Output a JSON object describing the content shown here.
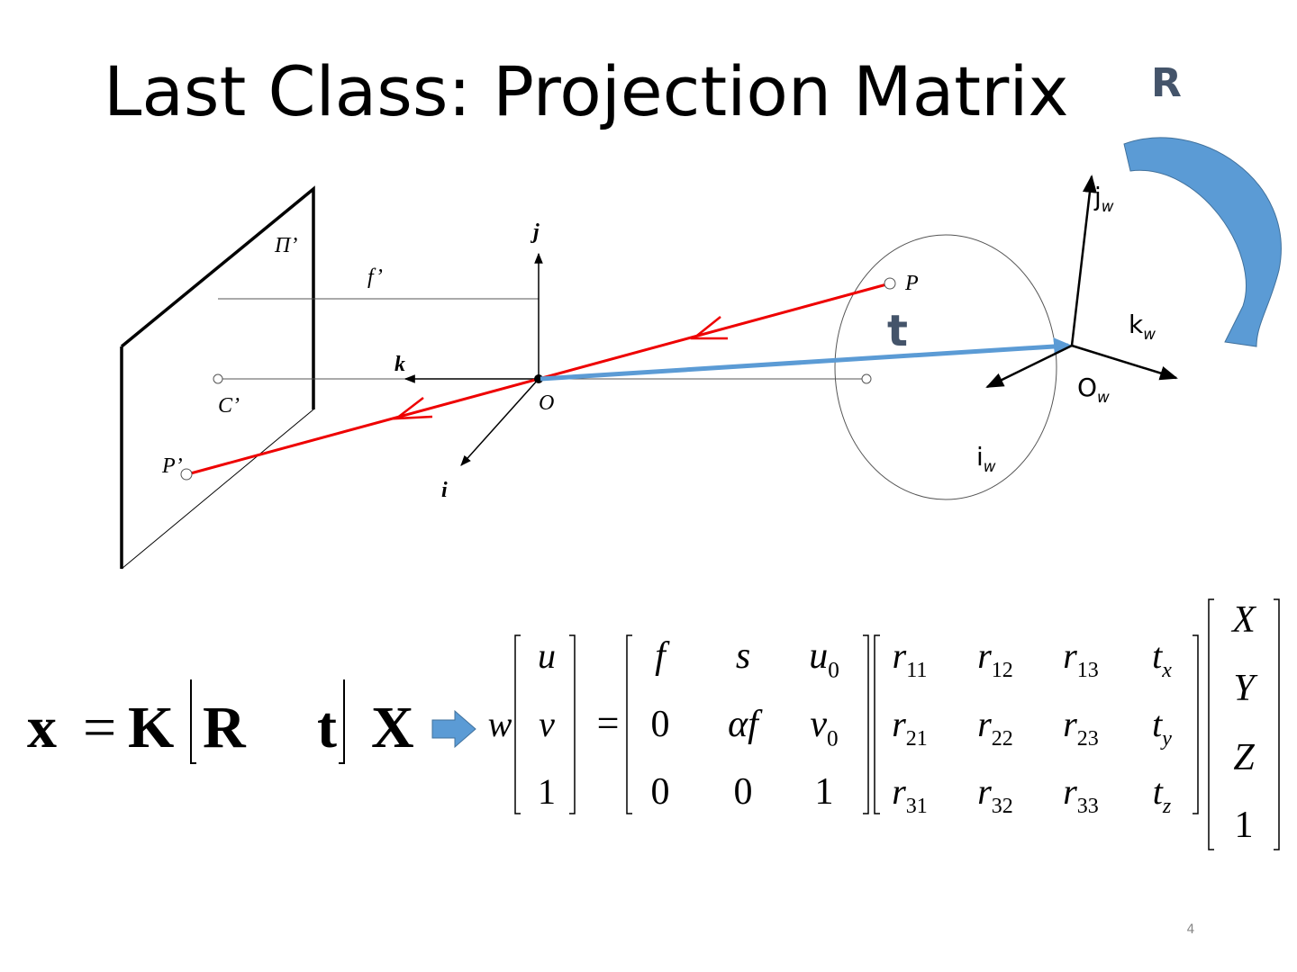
{
  "title": "Last Class: Projection Matrix",
  "slide_number": "4",
  "diagram": {
    "rotation_label": "R",
    "translation_label": "t",
    "camera_labels": {
      "image_plane": "Π’",
      "focal_length": "f’",
      "j_axis": "j",
      "k_axis": "k",
      "i_axis": "i",
      "center": "C’",
      "origin": "O",
      "point": "P",
      "projection": "P’"
    },
    "world_axes": {
      "j": {
        "base": "j",
        "sub": "w"
      },
      "k": {
        "base": "k",
        "sub": "w"
      },
      "origin": {
        "base": "O",
        "sub": "w"
      },
      "i": {
        "base": "i",
        "sub": "w"
      }
    }
  },
  "equation": {
    "x": "x",
    "equals": "=",
    "K": "K",
    "R": "R",
    "t": "t",
    "X": "X"
  },
  "matrix_equation": {
    "scale": "w",
    "equals": "=",
    "image_point": [
      "u",
      "v",
      "1"
    ],
    "intrinsics": [
      [
        "f",
        "s",
        {
          "base": "u",
          "sub": "0"
        }
      ],
      [
        "0",
        "αf",
        {
          "base": "v",
          "sub": "0"
        }
      ],
      [
        "0",
        "0",
        "1"
      ]
    ],
    "extrinsics": [
      [
        {
          "base": "r",
          "sub": "11"
        },
        {
          "base": "r",
          "sub": "12"
        },
        {
          "base": "r",
          "sub": "13"
        },
        {
          "base": "t",
          "sub": "x"
        }
      ],
      [
        {
          "base": "r",
          "sub": "21"
        },
        {
          "base": "r",
          "sub": "22"
        },
        {
          "base": "r",
          "sub": "23"
        },
        {
          "base": "t",
          "sub": "y"
        }
      ],
      [
        {
          "base": "r",
          "sub": "31"
        },
        {
          "base": "r",
          "sub": "32"
        },
        {
          "base": "r",
          "sub": "33"
        },
        {
          "base": "t",
          "sub": "z"
        }
      ]
    ],
    "world_point": [
      "X",
      "Y",
      "Z",
      "1"
    ]
  }
}
